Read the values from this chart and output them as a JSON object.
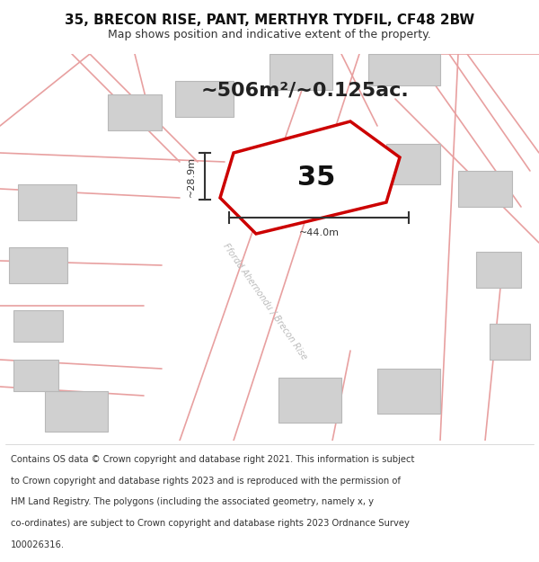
{
  "title": "35, BRECON RISE, PANT, MERTHYR TYDFIL, CF48 2BW",
  "subtitle": "Map shows position and indicative extent of the property.",
  "area_text": "~506m²/~0.125ac.",
  "house_number": "35",
  "dim_width": "~44.0m",
  "dim_height": "~28.9m",
  "street_label": "Ffordd Ahernondu / Brecon Rise",
  "copyright_lines": [
    "Contains OS data © Crown copyright and database right 2021. This information is subject",
    "to Crown copyright and database rights 2023 and is reproduced with the permission of",
    "HM Land Registry. The polygons (including the associated geometry, namely x, y",
    "co-ordinates) are subject to Crown copyright and database rights 2023 Ordnance Survey",
    "100026316."
  ],
  "map_bg": "#ffffff",
  "road_color": "#e8a0a0",
  "building_color": "#d0d0d0",
  "building_edge": "#b8b8b8",
  "property_color": "#cc0000",
  "property_fill": "#ffffff",
  "dim_color": "#333333",
  "area_text_color": "#222222",
  "title_fontsize": 11,
  "subtitle_fontsize": 9,
  "area_fontsize": 16,
  "label_fontsize": 8,
  "copyright_fontsize": 7.2,
  "figsize": [
    6.0,
    6.25
  ],
  "dpi": 100
}
